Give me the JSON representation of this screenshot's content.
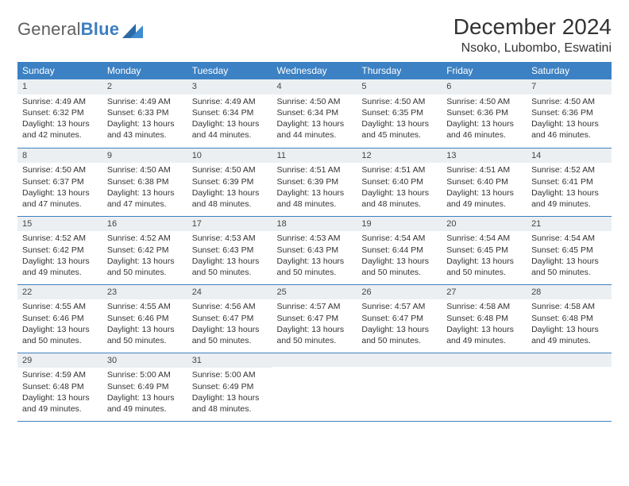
{
  "logo": {
    "general": "General",
    "blue": "Blue"
  },
  "header": {
    "month_title": "December 2024",
    "location": "Nsoko, Lubombo, Eswatini"
  },
  "colors": {
    "header_bg": "#3c81c3",
    "header_text": "#ffffff",
    "daybar_bg": "#eceff1",
    "rule": "#3c81c3",
    "logo_gray": "#5f5f5f",
    "logo_blue": "#3c7ebf",
    "text": "#333333"
  },
  "day_names": [
    "Sunday",
    "Monday",
    "Tuesday",
    "Wednesday",
    "Thursday",
    "Friday",
    "Saturday"
  ],
  "weeks": [
    [
      {
        "n": "1",
        "sr": "4:49 AM",
        "ss": "6:32 PM",
        "dl": "13 hours and 42 minutes."
      },
      {
        "n": "2",
        "sr": "4:49 AM",
        "ss": "6:33 PM",
        "dl": "13 hours and 43 minutes."
      },
      {
        "n": "3",
        "sr": "4:49 AM",
        "ss": "6:34 PM",
        "dl": "13 hours and 44 minutes."
      },
      {
        "n": "4",
        "sr": "4:50 AM",
        "ss": "6:34 PM",
        "dl": "13 hours and 44 minutes."
      },
      {
        "n": "5",
        "sr": "4:50 AM",
        "ss": "6:35 PM",
        "dl": "13 hours and 45 minutes."
      },
      {
        "n": "6",
        "sr": "4:50 AM",
        "ss": "6:36 PM",
        "dl": "13 hours and 46 minutes."
      },
      {
        "n": "7",
        "sr": "4:50 AM",
        "ss": "6:36 PM",
        "dl": "13 hours and 46 minutes."
      }
    ],
    [
      {
        "n": "8",
        "sr": "4:50 AM",
        "ss": "6:37 PM",
        "dl": "13 hours and 47 minutes."
      },
      {
        "n": "9",
        "sr": "4:50 AM",
        "ss": "6:38 PM",
        "dl": "13 hours and 47 minutes."
      },
      {
        "n": "10",
        "sr": "4:50 AM",
        "ss": "6:39 PM",
        "dl": "13 hours and 48 minutes."
      },
      {
        "n": "11",
        "sr": "4:51 AM",
        "ss": "6:39 PM",
        "dl": "13 hours and 48 minutes."
      },
      {
        "n": "12",
        "sr": "4:51 AM",
        "ss": "6:40 PM",
        "dl": "13 hours and 48 minutes."
      },
      {
        "n": "13",
        "sr": "4:51 AM",
        "ss": "6:40 PM",
        "dl": "13 hours and 49 minutes."
      },
      {
        "n": "14",
        "sr": "4:52 AM",
        "ss": "6:41 PM",
        "dl": "13 hours and 49 minutes."
      }
    ],
    [
      {
        "n": "15",
        "sr": "4:52 AM",
        "ss": "6:42 PM",
        "dl": "13 hours and 49 minutes."
      },
      {
        "n": "16",
        "sr": "4:52 AM",
        "ss": "6:42 PM",
        "dl": "13 hours and 50 minutes."
      },
      {
        "n": "17",
        "sr": "4:53 AM",
        "ss": "6:43 PM",
        "dl": "13 hours and 50 minutes."
      },
      {
        "n": "18",
        "sr": "4:53 AM",
        "ss": "6:43 PM",
        "dl": "13 hours and 50 minutes."
      },
      {
        "n": "19",
        "sr": "4:54 AM",
        "ss": "6:44 PM",
        "dl": "13 hours and 50 minutes."
      },
      {
        "n": "20",
        "sr": "4:54 AM",
        "ss": "6:45 PM",
        "dl": "13 hours and 50 minutes."
      },
      {
        "n": "21",
        "sr": "4:54 AM",
        "ss": "6:45 PM",
        "dl": "13 hours and 50 minutes."
      }
    ],
    [
      {
        "n": "22",
        "sr": "4:55 AM",
        "ss": "6:46 PM",
        "dl": "13 hours and 50 minutes."
      },
      {
        "n": "23",
        "sr": "4:55 AM",
        "ss": "6:46 PM",
        "dl": "13 hours and 50 minutes."
      },
      {
        "n": "24",
        "sr": "4:56 AM",
        "ss": "6:47 PM",
        "dl": "13 hours and 50 minutes."
      },
      {
        "n": "25",
        "sr": "4:57 AM",
        "ss": "6:47 PM",
        "dl": "13 hours and 50 minutes."
      },
      {
        "n": "26",
        "sr": "4:57 AM",
        "ss": "6:47 PM",
        "dl": "13 hours and 50 minutes."
      },
      {
        "n": "27",
        "sr": "4:58 AM",
        "ss": "6:48 PM",
        "dl": "13 hours and 49 minutes."
      },
      {
        "n": "28",
        "sr": "4:58 AM",
        "ss": "6:48 PM",
        "dl": "13 hours and 49 minutes."
      }
    ],
    [
      {
        "n": "29",
        "sr": "4:59 AM",
        "ss": "6:48 PM",
        "dl": "13 hours and 49 minutes."
      },
      {
        "n": "30",
        "sr": "5:00 AM",
        "ss": "6:49 PM",
        "dl": "13 hours and 49 minutes."
      },
      {
        "n": "31",
        "sr": "5:00 AM",
        "ss": "6:49 PM",
        "dl": "13 hours and 48 minutes."
      },
      null,
      null,
      null,
      null
    ]
  ],
  "labels": {
    "sunrise_prefix": "Sunrise: ",
    "sunset_prefix": "Sunset: ",
    "daylight_prefix": "Daylight: "
  }
}
